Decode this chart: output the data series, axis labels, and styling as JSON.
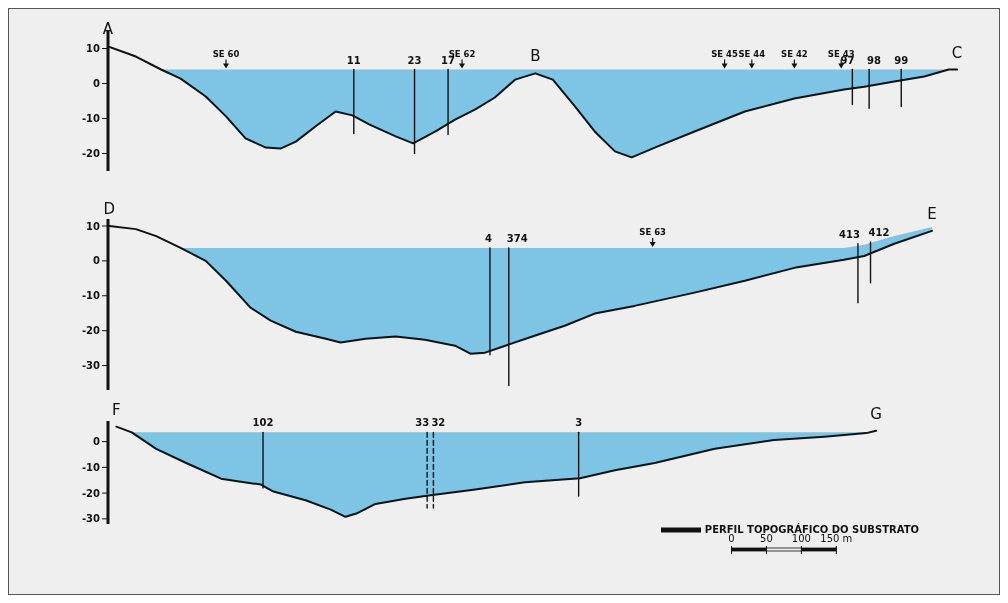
{
  "chart_data": [
    {
      "type": "line",
      "xlim": [
        -893,
        383
      ],
      "ylim": [
        -25,
        15
      ],
      "yticks": [
        10,
        0,
        -10,
        -20
      ],
      "tick_labels": "y",
      "marker": "none",
      "line_style": "solid",
      "grid": false,
      "series": [
        {
          "color": "#111111",
          "x": [
            -893,
            -853,
            -817,
            -789,
            -753,
            -724,
            -696,
            -667,
            -646,
            -624,
            -596,
            -567,
            -543,
            -519,
            -481,
            -456,
            -424,
            -396,
            -367,
            -339,
            -310,
            -281,
            -256,
            -224,
            -196,
            -167,
            -143,
            -110,
            -53,
            19,
            90,
            161,
            190,
            233,
            276,
            311,
            323
          ],
          "values": [
            10.6,
            7.7,
            4,
            1.4,
            -3.7,
            -9.4,
            -15.7,
            -18.3,
            -18.6,
            -16.6,
            -12.3,
            -8,
            -9.1,
            -11.7,
            -15.1,
            -17.1,
            -13.7,
            -10.3,
            -7.4,
            -4,
            1.1,
            2.9,
            1.1,
            -6.6,
            -13.7,
            -19.4,
            -21.1,
            -18.3,
            -13.7,
            -8,
            -4.3,
            -1.7,
            -0.9,
            0.6,
            2,
            4,
            4
          ],
          "lower": [
            10.6,
            7.7,
            4,
            1.4,
            -3.7,
            -9.4,
            -15.7,
            -18.3,
            -18.6,
            -16.6,
            -12.3,
            -8,
            -9.1,
            -11.7,
            -15.1,
            -17.1,
            -13.7,
            -10.3,
            -7.4,
            -4,
            1.1,
            2.9,
            1.1,
            -6.6,
            -13.7,
            -19.4,
            -21.1,
            -18.3,
            -13.7,
            -8,
            -4.3,
            -1.7,
            -0.9,
            0.6,
            2,
            4,
            4
          ],
          "upper": [
            10.6,
            7.7,
            4,
            4,
            4,
            4,
            4,
            4,
            4,
            4,
            4,
            4,
            4,
            4,
            4,
            4,
            4,
            4,
            4,
            4,
            4,
            4,
            4,
            4,
            4,
            4,
            4,
            4,
            4,
            4,
            4,
            4,
            4,
            4,
            4,
            4,
            4
          ]
        },
        {
          "name": "11",
          "color": "#111111",
          "x": [
            -541,
            -541
          ],
          "values": [
            4,
            -14.3
          ]
        },
        {
          "name": "23",
          "color": "#111111",
          "x": [
            -454,
            -454
          ],
          "values": [
            4,
            -20
          ]
        },
        {
          "name": "17",
          "color": "#111111",
          "x": [
            -406,
            -406
          ],
          "values": [
            4,
            -14.6
          ]
        },
        {
          "name": "97",
          "color": "#111111",
          "x": [
            173,
            173
          ],
          "values": [
            4,
            -6
          ]
        },
        {
          "name": "98",
          "color": "#111111",
          "x": [
            197,
            197
          ],
          "values": [
            4,
            -7.1
          ]
        },
        {
          "name": "99",
          "color": "#111111",
          "x": [
            243,
            243
          ],
          "values": [
            4,
            -6.6
          ]
        }
      ],
      "annotations": [
        {
          "text": "A",
          "x": -893,
          "y": 10.6
        },
        {
          "text": "B",
          "x": -281,
          "y": 2.9
        },
        {
          "text": "C",
          "x": 323,
          "y": 4
        },
        {
          "text": "SE 60",
          "x": -724,
          "y": 4
        },
        {
          "text": "SE 62",
          "x": -386,
          "y": 4
        },
        {
          "text": "SE 45",
          "x": -10,
          "y": 4
        },
        {
          "text": "SE 44",
          "x": 29,
          "y": 4
        },
        {
          "text": "SE 42",
          "x": 90,
          "y": 4
        },
        {
          "text": "SE 43",
          "x": 157,
          "y": 4
        }
      ]
    },
    {
      "type": "line",
      "xlim": [
        -893,
        383
      ],
      "ylim": [
        -37,
        12
      ],
      "yticks": [
        10,
        0,
        -10,
        -20,
        -30
      ],
      "tick_labels": "y",
      "marker": "none",
      "line_style": "solid",
      "grid": false,
      "series": [
        {
          "color": "#111111",
          "x": [
            -891,
            -853,
            -824,
            -789,
            -753,
            -724,
            -689,
            -660,
            -624,
            -581,
            -560,
            -524,
            -481,
            -439,
            -396,
            -374,
            -353,
            -324,
            -281,
            -239,
            -196,
            -139,
            -53,
            19,
            90,
            161,
            190,
            233,
            287
          ],
          "values": [
            10,
            9.1,
            7.1,
            3.7,
            0,
            -5.7,
            -13.4,
            -17.1,
            -20.3,
            -22.3,
            -23.4,
            -22.3,
            -21.7,
            -22.6,
            -24.3,
            -26.6,
            -26.3,
            -24.3,
            -21.4,
            -18.6,
            -15.1,
            -12.9,
            -9.1,
            -5.7,
            -2,
            0.3,
            1.4,
            4.9,
            8.6
          ],
          "lower": [
            10,
            9.1,
            7.1,
            3.7,
            0,
            -5.7,
            -13.4,
            -17.1,
            -20.3,
            -22.3,
            -23.4,
            -22.3,
            -21.7,
            -22.6,
            -24.3,
            -26.6,
            -26.3,
            -24.3,
            -21.4,
            -18.6,
            -15.1,
            -12.9,
            -9.1,
            -5.7,
            -2,
            0.3,
            1.4,
            4.9,
            8.6
          ],
          "upper": [
            10,
            9.1,
            7.1,
            3.7,
            3.7,
            3.7,
            3.7,
            3.7,
            3.7,
            3.7,
            3.7,
            3.7,
            3.7,
            3.7,
            3.7,
            3.7,
            3.7,
            3.7,
            3.7,
            3.7,
            3.7,
            3.7,
            3.7,
            3.7,
            3.7,
            3.7,
            4.6,
            7.1,
            9.7
          ]
        },
        {
          "name": "4",
          "color": "#111111",
          "x": [
            -346,
            -346
          ],
          "values": [
            3.7,
            -26.9
          ]
        },
        {
          "name": "374",
          "color": "#111111",
          "x": [
            -319,
            -319
          ],
          "values": [
            3.7,
            -35.7
          ]
        },
        {
          "name": "413",
          "color": "#111111",
          "x": [
            181,
            181
          ],
          "values": [
            4.9,
            -12
          ]
        },
        {
          "name": "412",
          "color": "#111111",
          "x": [
            199,
            199
          ],
          "values": [
            5.4,
            -6.3
          ]
        }
      ],
      "annotations": [
        {
          "text": "D",
          "x": -891,
          "y": 10
        },
        {
          "text": "E",
          "x": 287,
          "y": 8.6
        },
        {
          "text": "SE 63",
          "x": -113,
          "y": 3.7
        }
      ]
    },
    {
      "type": "line",
      "xlim": [
        -893,
        383
      ],
      "ylim": [
        -32,
        8
      ],
      "yticks": [
        0,
        -10,
        -20,
        -30
      ],
      "xticks": [
        0,
        50,
        100,
        {
          "value": 150,
          "label": "150 m"
        }
      ],
      "marker": "none",
      "line_style": "solid",
      "grid": false,
      "legend": "bottom right",
      "series": [
        {
          "name": "PERFIL TOPOGRÁFICO DO SUBSTRATO",
          "color": "#111111",
          "x": [
            -881,
            -859,
            -824,
            -781,
            -731,
            -710,
            -674,
            -656,
            -610,
            -574,
            -553,
            -536,
            -510,
            -467,
            -431,
            -367,
            -296,
            -217,
            -167,
            -110,
            -24,
            61,
            133,
            193,
            207
          ],
          "values": [
            5.8,
            3.6,
            -2.8,
            -8.3,
            -14.4,
            -15.3,
            -16.7,
            -19.4,
            -22.8,
            -26.4,
            -29.2,
            -27.8,
            -24.2,
            -22.2,
            -20.8,
            -18.6,
            -15.8,
            -14.2,
            -11.1,
            -8.3,
            -2.8,
            0.6,
            1.9,
            3.3,
            4.2
          ],
          "lower": [
            5.8,
            3.6,
            -2.8,
            -8.3,
            -14.4,
            -15.3,
            -16.7,
            -19.4,
            -22.8,
            -26.4,
            -29.2,
            -27.8,
            -24.2,
            -22.2,
            -20.8,
            -18.6,
            -15.8,
            -14.2,
            -11.1,
            -8.3,
            -2.8,
            0.6,
            1.9,
            3.3,
            4.2
          ],
          "upper": [
            5.8,
            3.6,
            3.6,
            3.6,
            3.6,
            3.6,
            3.6,
            3.6,
            3.6,
            3.6,
            3.6,
            3.6,
            3.6,
            3.6,
            3.6,
            3.6,
            3.6,
            3.6,
            3.6,
            3.6,
            3.6,
            3.6,
            3.6,
            3.6,
            4.2
          ]
        },
        {
          "name": "102",
          "color": "#111111",
          "x": [
            -671,
            -671
          ],
          "values": [
            3.6,
            -18
          ]
        },
        {
          "name": "33",
          "color": "#111111",
          "line_style": "dashed",
          "x": [
            -436,
            -436
          ],
          "values": [
            3.6,
            -25.8
          ]
        },
        {
          "name": "32",
          "color": "#111111",
          "line_style": "dashed",
          "x": [
            -427,
            -427
          ],
          "values": [
            3.6,
            -25.8
          ]
        },
        {
          "name": "3",
          "color": "#111111",
          "x": [
            -219,
            -219
          ],
          "values": [
            3.6,
            -21.1
          ]
        }
      ],
      "annotations": [
        {
          "text": "F",
          "x": -881,
          "y": 5.8
        },
        {
          "text": "G",
          "x": 207,
          "y": 4.2
        }
      ]
    }
  ]
}
